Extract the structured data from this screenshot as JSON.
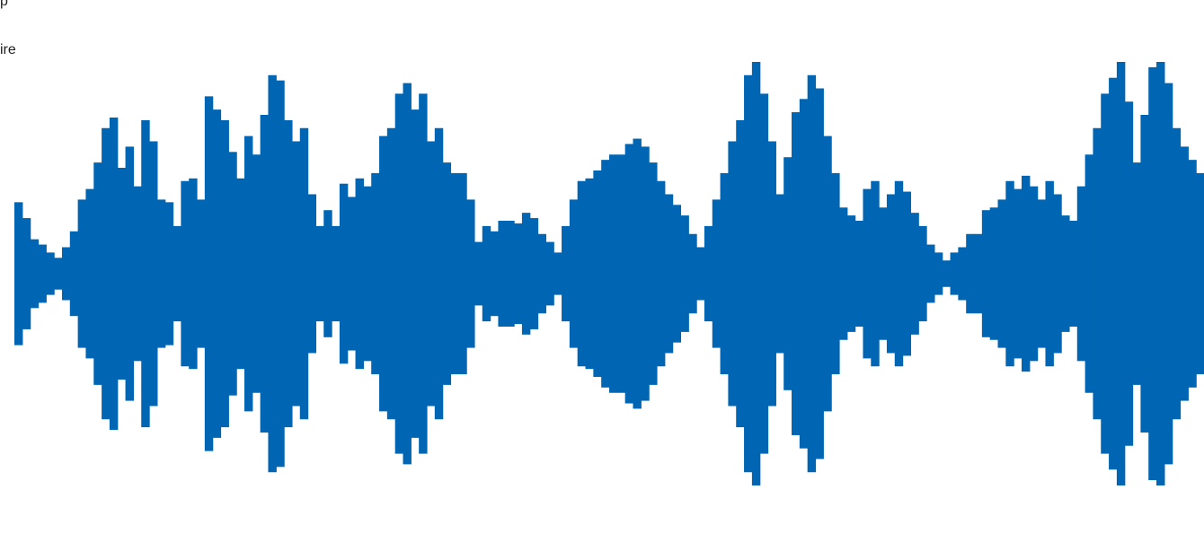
{
  "labels": {
    "top_fragment": "p",
    "side_fragment": "ire"
  },
  "waveform": {
    "color": "#0066b3",
    "bar_count": 150,
    "amplitudes": [
      0.27,
      0.21,
      0.13,
      0.11,
      0.08,
      0.06,
      0.1,
      0.16,
      0.28,
      0.32,
      0.42,
      0.55,
      0.59,
      0.4,
      0.48,
      0.33,
      0.58,
      0.5,
      0.28,
      0.27,
      0.18,
      0.35,
      0.36,
      0.28,
      0.67,
      0.62,
      0.58,
      0.46,
      0.36,
      0.52,
      0.45,
      0.6,
      0.75,
      0.73,
      0.58,
      0.5,
      0.55,
      0.3,
      0.18,
      0.24,
      0.18,
      0.34,
      0.29,
      0.36,
      0.33,
      0.38,
      0.52,
      0.55,
      0.68,
      0.72,
      0.62,
      0.68,
      0.5,
      0.55,
      0.42,
      0.38,
      0.38,
      0.28,
      0.12,
      0.18,
      0.16,
      0.2,
      0.2,
      0.19,
      0.23,
      0.21,
      0.15,
      0.12,
      0.08,
      0.18,
      0.28,
      0.35,
      0.36,
      0.39,
      0.43,
      0.45,
      0.45,
      0.49,
      0.51,
      0.48,
      0.42,
      0.35,
      0.3,
      0.26,
      0.22,
      0.15,
      0.1,
      0.18,
      0.28,
      0.38,
      0.5,
      0.58,
      0.75,
      0.8,
      0.68,
      0.5,
      0.3,
      0.44,
      0.61,
      0.66,
      0.75,
      0.7,
      0.52,
      0.38,
      0.25,
      0.22,
      0.2,
      0.32,
      0.35,
      0.25,
      0.3,
      0.35,
      0.31,
      0.23,
      0.18,
      0.11,
      0.08,
      0.05,
      0.08,
      0.1,
      0.15,
      0.15,
      0.24,
      0.25,
      0.28,
      0.35,
      0.32,
      0.37,
      0.33,
      0.28,
      0.35,
      0.3,
      0.22,
      0.2,
      0.33,
      0.45,
      0.55,
      0.68,
      0.74,
      0.8,
      0.65,
      0.42,
      0.6,
      0.78,
      0.8,
      0.72,
      0.55,
      0.48,
      0.43,
      0.38
    ]
  }
}
